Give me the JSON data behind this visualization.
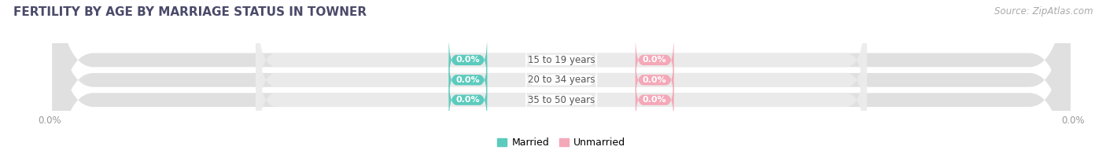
{
  "title": "FERTILITY BY AGE BY MARRIAGE STATUS IN TOWNER",
  "source": "Source: ZipAtlas.com",
  "age_groups": [
    "15 to 19 years",
    "20 to 34 years",
    "35 to 50 years"
  ],
  "married_values": [
    0.0,
    0.0,
    0.0
  ],
  "unmarried_values": [
    0.0,
    0.0,
    0.0
  ],
  "married_color": "#5BCBBD",
  "unmarried_color": "#F4A8B8",
  "bar_bg_color": "#E0E0E0",
  "bar_bg_light": "#F0F0F0",
  "title_fontsize": 11,
  "source_fontsize": 8.5,
  "label_fontsize": 8.5,
  "badge_fontsize": 8,
  "tick_label_fontsize": 8.5,
  "legend_fontsize": 9,
  "background_color": "#ffffff",
  "badge_text_color": "#ffffff",
  "center_text_color": "#555555",
  "axis_label_color": "#999999",
  "title_color": "#4a4a6a"
}
